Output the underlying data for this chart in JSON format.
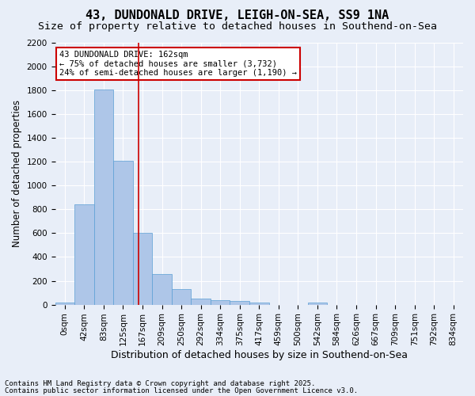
{
  "title": "43, DUNDONALD DRIVE, LEIGH-ON-SEA, SS9 1NA",
  "subtitle": "Size of property relative to detached houses in Southend-on-Sea",
  "xlabel": "Distribution of detached houses by size in Southend-on-Sea",
  "ylabel": "Number of detached properties",
  "bar_values": [
    20,
    840,
    1810,
    1210,
    600,
    255,
    130,
    50,
    40,
    30,
    15,
    0,
    0,
    15,
    0,
    0,
    0,
    0,
    0,
    0,
    0
  ],
  "bar_labels": [
    "0sqm",
    "42sqm",
    "83sqm",
    "125sqm",
    "167sqm",
    "209sqm",
    "250sqm",
    "292sqm",
    "334sqm",
    "375sqm",
    "417sqm",
    "459sqm",
    "500sqm",
    "542sqm",
    "584sqm",
    "626sqm",
    "667sqm",
    "709sqm",
    "751sqm",
    "792sqm",
    "834sqm"
  ],
  "bar_color": "#aec6e8",
  "bar_edge_color": "#5a9fd4",
  "bar_width": 1.0,
  "vline_x": 3.8,
  "vline_color": "#cc0000",
  "annotation_text": "43 DUNDONALD DRIVE: 162sqm\n← 75% of detached houses are smaller (3,732)\n24% of semi-detached houses are larger (1,190) →",
  "annotation_box_color": "#ffffff",
  "annotation_box_edge": "#cc0000",
  "ylim": [
    0,
    2200
  ],
  "yticks": [
    0,
    200,
    400,
    600,
    800,
    1000,
    1200,
    1400,
    1600,
    1800,
    2000,
    2200
  ],
  "background_color": "#e8eef8",
  "grid_color": "#ffffff",
  "footer_line1": "Contains HM Land Registry data © Crown copyright and database right 2025.",
  "footer_line2": "Contains public sector information licensed under the Open Government Licence v3.0.",
  "title_fontsize": 11,
  "subtitle_fontsize": 9.5,
  "xlabel_fontsize": 9,
  "ylabel_fontsize": 8.5,
  "tick_fontsize": 7.5,
  "annotation_fontsize": 7.5,
  "footer_fontsize": 6.5
}
